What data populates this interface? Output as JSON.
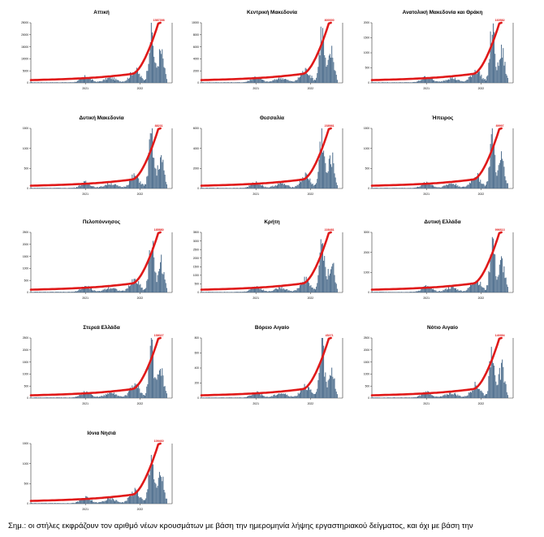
{
  "note": "Σημ.: οι στήλες εκφράζουν τον αριθμό νέων κρουσμάτων με βάση την ημερομηνία λήψης εργαστηριακού δείγματος, και όχι με βάση την",
  "colors": {
    "bars": "#4f6f8e",
    "line": "#e01919",
    "axis": "#333333"
  },
  "chart_data": [
    {
      "type": "bar",
      "title": "Αττική",
      "x_ticks": [
        "2021",
        "2022"
      ],
      "end_label": "1587398",
      "ylim": [
        0,
        25000
      ],
      "y_ticks": [
        "0",
        "5000",
        "10000",
        "15000",
        "20000",
        "25000"
      ]
    },
    {
      "type": "bar",
      "title": "Κεντρική Μακεδονία",
      "x_ticks": [
        "2021",
        "2022"
      ],
      "end_label": "800000",
      "ylim": [
        0,
        10000
      ],
      "y_ticks": [
        "0",
        "2000",
        "4000",
        "6000",
        "8000",
        "10000"
      ]
    },
    {
      "type": "bar",
      "title": "Ανατολική Μακεδονία και Θράκη",
      "x_ticks": [
        "2021",
        "2022"
      ],
      "end_label": "160582",
      "ylim": [
        0,
        2000
      ],
      "y_ticks": [
        "0",
        "500",
        "1000",
        "1500",
        "2000"
      ]
    },
    {
      "type": "bar",
      "title": "Δυτική Μακεδονία",
      "x_ticks": [
        "2021",
        "2022"
      ],
      "end_label": "88231",
      "ylim": [
        0,
        1500
      ],
      "y_ticks": [
        "0",
        "500",
        "1000",
        "1500"
      ]
    },
    {
      "type": "bar",
      "title": "Θεσσαλία",
      "x_ticks": [
        "2021",
        "2022"
      ],
      "end_label": "238981",
      "ylim": [
        0,
        6000
      ],
      "y_ticks": [
        "0",
        "2000",
        "4000",
        "6000"
      ]
    },
    {
      "type": "bar",
      "title": "Ήπειρος",
      "x_ticks": [
        "2021",
        "2022"
      ],
      "end_label": "89997",
      "ylim": [
        0,
        1500
      ],
      "y_ticks": [
        "0",
        "500",
        "1000",
        "1500"
      ]
    },
    {
      "type": "bar",
      "title": "Πελοπόννησος",
      "x_ticks": [
        "2021",
        "2022"
      ],
      "end_label": "185880",
      "ylim": [
        0,
        2500
      ],
      "y_ticks": [
        "0",
        "500",
        "1000",
        "1500",
        "2000",
        "2500"
      ]
    },
    {
      "type": "bar",
      "title": "Κρήτη",
      "x_ticks": [
        "2021",
        "2022"
      ],
      "end_label": "228481",
      "ylim": [
        0,
        3500
      ],
      "y_ticks": [
        "0",
        "500",
        "1000",
        "1500",
        "2000",
        "2500",
        "3000",
        "3500"
      ]
    },
    {
      "type": "bar",
      "title": "Δυτική Ελλάδα",
      "x_ticks": [
        "2021",
        "2022"
      ],
      "end_label": "996613",
      "ylim": [
        0,
        3000
      ],
      "y_ticks": [
        "0",
        "1000",
        "2000",
        "3000"
      ]
    },
    {
      "type": "bar",
      "title": "Στερεά Ελλάδα",
      "x_ticks": [
        "2021",
        "2022"
      ],
      "end_label": "158027",
      "ylim": [
        0,
        2500
      ],
      "y_ticks": [
        "0",
        "500",
        "1000",
        "1500",
        "2000",
        "2500"
      ]
    },
    {
      "type": "bar",
      "title": "Βόρειο Αιγαίο",
      "x_ticks": [
        "2021",
        "2022"
      ],
      "end_label": "45271",
      "ylim": [
        0,
        800
      ],
      "y_ticks": [
        "0",
        "200",
        "400",
        "600",
        "800"
      ]
    },
    {
      "type": "bar",
      "title": "Νότιο Αιγαίο",
      "x_ticks": [
        "2021",
        "2022"
      ],
      "end_label": "146994",
      "ylim": [
        0,
        2500
      ],
      "y_ticks": [
        "0",
        "500",
        "1000",
        "1500",
        "2000",
        "2500"
      ]
    },
    {
      "type": "bar",
      "title": "Ιόνια Νησιά",
      "x_ticks": [
        "2021",
        "2022"
      ],
      "end_label": "109460",
      "ylim": [
        0,
        1500
      ],
      "y_ticks": [
        "0",
        "500",
        "1000",
        "1500"
      ]
    }
  ]
}
